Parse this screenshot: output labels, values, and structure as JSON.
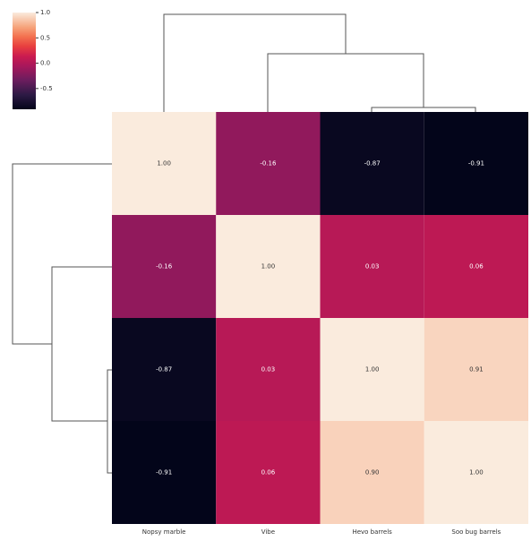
{
  "chart_data": {
    "type": "heatmap",
    "categories": [
      "Nopsy marble",
      "Vibe",
      "Hevo barrels",
      "Soo bug barrels"
    ],
    "values": [
      [
        1.0,
        -0.16,
        -0.87,
        -0.91
      ],
      [
        -0.16,
        1.0,
        0.03,
        0.06
      ],
      [
        -0.87,
        0.03,
        1.0,
        0.91
      ],
      [
        -0.91,
        0.06,
        0.9,
        1.0
      ]
    ],
    "value_labels": [
      [
        "1.00",
        "-0.16",
        "-0.87",
        "-0.91"
      ],
      [
        "-0.16",
        "1.00",
        "0.03",
        "0.06"
      ],
      [
        "-0.87",
        "0.03",
        "1.00",
        "0.91"
      ],
      [
        "-0.91",
        "0.06",
        "0.90",
        "1.00"
      ]
    ],
    "colormap": "rocket",
    "clim": [
      -0.91,
      1.0
    ],
    "cticks": [
      {
        "value": 1.0,
        "label": "1.0"
      },
      0.5,
      {
        "value": 0.0,
        "label": "0.0"
      },
      -0.5
    ]
  }
}
